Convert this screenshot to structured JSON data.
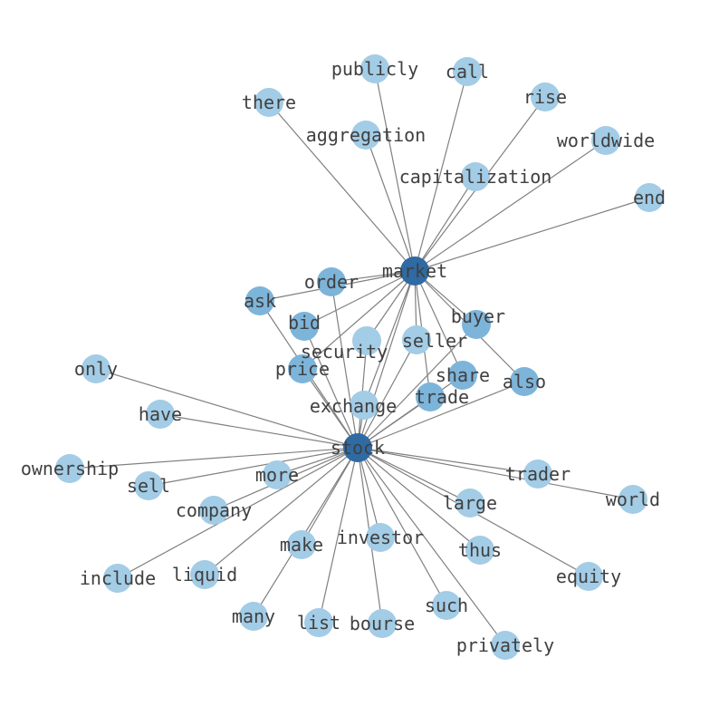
{
  "graph": {
    "node_colors": {
      "hub": "#2f6aa3",
      "mid": "#7db4da",
      "leaf": "#a3cce6"
    },
    "edge_color": "#808080",
    "label_color": "#404040",
    "nodes": [
      {
        "id": "market",
        "tier": "hub"
      },
      {
        "id": "stock",
        "tier": "hub"
      },
      {
        "id": "there",
        "tier": "leaf"
      },
      {
        "id": "publicly",
        "tier": "leaf"
      },
      {
        "id": "call",
        "tier": "leaf"
      },
      {
        "id": "rise",
        "tier": "leaf"
      },
      {
        "id": "worldwide",
        "tier": "leaf"
      },
      {
        "id": "end",
        "tier": "leaf"
      },
      {
        "id": "aggregation",
        "tier": "leaf"
      },
      {
        "id": "capitalization",
        "tier": "leaf"
      },
      {
        "id": "order",
        "tier": "mid"
      },
      {
        "id": "ask",
        "tier": "mid"
      },
      {
        "id": "bid",
        "tier": "mid"
      },
      {
        "id": "security",
        "tier": "leaf"
      },
      {
        "id": "seller",
        "tier": "leaf"
      },
      {
        "id": "buyer",
        "tier": "mid"
      },
      {
        "id": "price",
        "tier": "mid"
      },
      {
        "id": "share",
        "tier": "mid"
      },
      {
        "id": "also",
        "tier": "mid"
      },
      {
        "id": "exchange",
        "tier": "leaf"
      },
      {
        "id": "trade",
        "tier": "mid"
      },
      {
        "id": "only",
        "tier": "leaf"
      },
      {
        "id": "have",
        "tier": "leaf"
      },
      {
        "id": "ownership",
        "tier": "leaf"
      },
      {
        "id": "sell",
        "tier": "leaf"
      },
      {
        "id": "more",
        "tier": "leaf"
      },
      {
        "id": "company",
        "tier": "leaf"
      },
      {
        "id": "include",
        "tier": "leaf"
      },
      {
        "id": "liquid",
        "tier": "leaf"
      },
      {
        "id": "many",
        "tier": "leaf"
      },
      {
        "id": "make",
        "tier": "leaf"
      },
      {
        "id": "list",
        "tier": "leaf"
      },
      {
        "id": "bourse",
        "tier": "leaf"
      },
      {
        "id": "investor",
        "tier": "leaf"
      },
      {
        "id": "such",
        "tier": "leaf"
      },
      {
        "id": "privately",
        "tier": "leaf"
      },
      {
        "id": "thus",
        "tier": "leaf"
      },
      {
        "id": "large",
        "tier": "leaf"
      },
      {
        "id": "equity",
        "tier": "leaf"
      },
      {
        "id": "trader",
        "tier": "leaf"
      },
      {
        "id": "world",
        "tier": "leaf"
      }
    ],
    "edges": [
      [
        "market",
        "stock"
      ],
      [
        "market",
        "there"
      ],
      [
        "market",
        "publicly"
      ],
      [
        "market",
        "call"
      ],
      [
        "market",
        "rise"
      ],
      [
        "market",
        "worldwide"
      ],
      [
        "market",
        "end"
      ],
      [
        "market",
        "aggregation"
      ],
      [
        "market",
        "capitalization"
      ],
      [
        "market",
        "order"
      ],
      [
        "market",
        "ask"
      ],
      [
        "market",
        "bid"
      ],
      [
        "market",
        "price"
      ],
      [
        "market",
        "security"
      ],
      [
        "market",
        "seller"
      ],
      [
        "market",
        "buyer"
      ],
      [
        "market",
        "share"
      ],
      [
        "market",
        "also"
      ],
      [
        "market",
        "trade"
      ],
      [
        "market",
        "exchange"
      ],
      [
        "stock",
        "order"
      ],
      [
        "stock",
        "ask"
      ],
      [
        "stock",
        "bid"
      ],
      [
        "stock",
        "price"
      ],
      [
        "stock",
        "security"
      ],
      [
        "stock",
        "seller"
      ],
      [
        "stock",
        "buyer"
      ],
      [
        "stock",
        "share"
      ],
      [
        "stock",
        "also"
      ],
      [
        "stock",
        "trade"
      ],
      [
        "stock",
        "exchange"
      ],
      [
        "stock",
        "only"
      ],
      [
        "stock",
        "have"
      ],
      [
        "stock",
        "ownership"
      ],
      [
        "stock",
        "sell"
      ],
      [
        "stock",
        "more"
      ],
      [
        "stock",
        "company"
      ],
      [
        "stock",
        "include"
      ],
      [
        "stock",
        "liquid"
      ],
      [
        "stock",
        "many"
      ],
      [
        "stock",
        "make"
      ],
      [
        "stock",
        "list"
      ],
      [
        "stock",
        "bourse"
      ],
      [
        "stock",
        "investor"
      ],
      [
        "stock",
        "such"
      ],
      [
        "stock",
        "privately"
      ],
      [
        "stock",
        "thus"
      ],
      [
        "stock",
        "large"
      ],
      [
        "stock",
        "equity"
      ],
      [
        "stock",
        "trader"
      ],
      [
        "stock",
        "world"
      ]
    ]
  }
}
